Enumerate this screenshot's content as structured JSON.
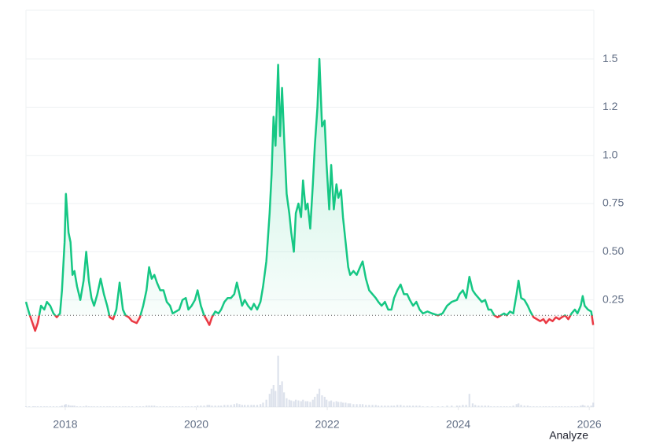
{
  "chart_data": {
    "type": "line",
    "x": [
      2017.4,
      2017.45,
      2017.51,
      2017.54,
      2017.58,
      2017.63,
      2017.68,
      2017.72,
      2017.77,
      2017.82,
      2017.87,
      2017.92,
      2017.95,
      2017.99,
      2018.01,
      2018.05,
      2018.08,
      2018.11,
      2018.14,
      2018.18,
      2018.23,
      2018.28,
      2018.32,
      2018.36,
      2018.4,
      2018.44,
      2018.49,
      2018.54,
      2018.59,
      2018.64,
      2018.68,
      2018.73,
      2018.78,
      2018.83,
      2018.88,
      2018.92,
      2018.97,
      2019.02,
      2019.09,
      2019.14,
      2019.19,
      2019.24,
      2019.28,
      2019.32,
      2019.36,
      2019.4,
      2019.45,
      2019.5,
      2019.55,
      2019.6,
      2019.64,
      2019.69,
      2019.74,
      2019.79,
      2019.84,
      2019.88,
      2019.93,
      2019.98,
      2020.02,
      2020.07,
      2020.12,
      2020.17,
      2020.2,
      2020.24,
      2020.29,
      2020.34,
      2020.38,
      2020.43,
      2020.48,
      2020.53,
      2020.58,
      2020.62,
      2020.66,
      2020.7,
      2020.74,
      2020.79,
      2020.84,
      2020.88,
      2020.93,
      2020.98,
      2021.02,
      2021.07,
      2021.12,
      2021.15,
      2021.18,
      2021.21,
      2021.25,
      2021.28,
      2021.31,
      2021.34,
      2021.38,
      2021.42,
      2021.45,
      2021.49,
      2021.52,
      2021.56,
      2021.6,
      2021.63,
      2021.67,
      2021.7,
      2021.74,
      2021.78,
      2021.81,
      2021.85,
      2021.88,
      2021.92,
      2021.96,
      2021.99,
      2022.03,
      2022.06,
      2022.1,
      2022.14,
      2022.17,
      2022.21,
      2022.24,
      2022.28,
      2022.32,
      2022.35,
      2022.4,
      2022.45,
      2022.5,
      2022.54,
      2022.59,
      2022.64,
      2022.69,
      2022.74,
      2022.78,
      2022.83,
      2022.88,
      2022.93,
      2022.98,
      2023.02,
      2023.07,
      2023.12,
      2023.17,
      2023.22,
      2023.26,
      2023.31,
      2023.36,
      2023.41,
      2023.46,
      2023.53,
      2023.6,
      2023.69,
      2023.76,
      2023.83,
      2023.9,
      2023.98,
      2024.02,
      2024.07,
      2024.12,
      2024.17,
      2024.22,
      2024.26,
      2024.31,
      2024.36,
      2024.41,
      2024.46,
      2024.5,
      2024.55,
      2024.6,
      2024.65,
      2024.7,
      2024.74,
      2024.79,
      2024.84,
      2024.89,
      2024.92,
      2024.96,
      2025.01,
      2025.06,
      2025.1,
      2025.15,
      2025.2,
      2025.25,
      2025.3,
      2025.34,
      2025.39,
      2025.44,
      2025.49,
      2025.54,
      2025.58,
      2025.63,
      2025.68,
      2025.73,
      2025.78,
      2025.82,
      2025.87,
      2025.9,
      2025.93,
      2025.98,
      2026.03,
      2026.06
    ],
    "values": [
      0.24,
      0.18,
      0.12,
      0.09,
      0.13,
      0.22,
      0.2,
      0.24,
      0.22,
      0.18,
      0.16,
      0.18,
      0.3,
      0.55,
      0.8,
      0.6,
      0.55,
      0.38,
      0.4,
      0.32,
      0.25,
      0.35,
      0.5,
      0.35,
      0.26,
      0.22,
      0.28,
      0.36,
      0.28,
      0.22,
      0.16,
      0.15,
      0.2,
      0.34,
      0.2,
      0.17,
      0.16,
      0.14,
      0.13,
      0.16,
      0.22,
      0.3,
      0.42,
      0.36,
      0.38,
      0.34,
      0.3,
      0.3,
      0.24,
      0.22,
      0.18,
      0.19,
      0.2,
      0.25,
      0.26,
      0.2,
      0.22,
      0.25,
      0.3,
      0.22,
      0.17,
      0.14,
      0.12,
      0.16,
      0.19,
      0.18,
      0.2,
      0.24,
      0.26,
      0.26,
      0.28,
      0.34,
      0.28,
      0.22,
      0.25,
      0.22,
      0.2,
      0.23,
      0.2,
      0.24,
      0.32,
      0.45,
      0.7,
      0.9,
      1.2,
      1.05,
      1.47,
      1.1,
      1.35,
      1.1,
      0.8,
      0.7,
      0.6,
      0.5,
      0.7,
      0.75,
      0.68,
      0.87,
      0.72,
      0.75,
      0.62,
      0.85,
      1.05,
      1.25,
      1.5,
      1.15,
      1.18,
      0.95,
      0.72,
      0.95,
      0.72,
      0.85,
      0.78,
      0.82,
      0.68,
      0.55,
      0.42,
      0.38,
      0.4,
      0.38,
      0.42,
      0.45,
      0.36,
      0.3,
      0.28,
      0.26,
      0.24,
      0.22,
      0.24,
      0.2,
      0.2,
      0.26,
      0.3,
      0.33,
      0.28,
      0.28,
      0.25,
      0.22,
      0.24,
      0.2,
      0.18,
      0.19,
      0.18,
      0.17,
      0.18,
      0.22,
      0.24,
      0.25,
      0.28,
      0.3,
      0.26,
      0.37,
      0.3,
      0.28,
      0.26,
      0.24,
      0.25,
      0.2,
      0.2,
      0.17,
      0.16,
      0.17,
      0.18,
      0.17,
      0.19,
      0.18,
      0.28,
      0.35,
      0.26,
      0.25,
      0.22,
      0.19,
      0.16,
      0.15,
      0.14,
      0.15,
      0.13,
      0.15,
      0.14,
      0.16,
      0.15,
      0.16,
      0.17,
      0.15,
      0.18,
      0.2,
      0.18,
      0.22,
      0.27,
      0.22,
      0.2,
      0.19,
      0.12
    ],
    "volume": [
      1,
      1,
      1,
      1,
      1,
      1,
      1,
      1,
      1,
      1,
      1,
      1,
      2,
      3,
      4,
      3,
      2,
      2,
      2,
      1,
      1,
      1,
      2,
      1,
      1,
      1,
      1,
      1,
      1,
      1,
      1,
      1,
      1,
      1,
      1,
      1,
      1,
      1,
      1,
      1,
      1,
      2,
      2,
      2,
      2,
      1,
      1,
      1,
      1,
      1,
      1,
      1,
      1,
      1,
      1,
      1,
      1,
      1,
      2,
      2,
      2,
      3,
      3,
      2,
      2,
      2,
      2,
      3,
      3,
      3,
      4,
      5,
      4,
      3,
      3,
      3,
      3,
      3,
      3,
      4,
      6,
      10,
      18,
      25,
      30,
      22,
      70,
      30,
      35,
      20,
      12,
      10,
      9,
      8,
      10,
      9,
      8,
      10,
      8,
      8,
      7,
      10,
      14,
      18,
      25,
      16,
      14,
      10,
      8,
      9,
      7,
      8,
      7,
      7,
      6,
      6,
      5,
      5,
      4,
      4,
      4,
      4,
      3,
      3,
      3,
      3,
      2,
      2,
      2,
      2,
      2,
      2,
      3,
      3,
      2,
      2,
      2,
      2,
      2,
      2,
      1,
      1,
      1,
      1,
      1,
      2,
      2,
      2,
      2,
      3,
      3,
      18,
      5,
      3,
      2,
      2,
      2,
      2,
      1,
      1,
      1,
      1,
      1,
      1,
      1,
      2,
      4,
      5,
      3,
      2,
      2,
      1,
      1,
      1,
      1,
      1,
      1,
      1,
      1,
      1,
      1,
      1,
      1,
      1,
      1,
      1,
      1,
      2,
      3,
      2,
      2,
      2,
      6
    ],
    "volume_lim": [
      0,
      75
    ],
    "baseline": 0.17,
    "up_color": "#16c784",
    "down_color": "#ea3943",
    "volume_color": "#cfd6e4",
    "xlim": [
      2017.4,
      2026.07
    ],
    "xticks": [
      2018,
      2020,
      2022,
      2024,
      2026
    ],
    "ylim": [
      0,
      1.753
    ],
    "yticks": [
      0.25,
      {
        "value": 0.5,
        "label": "0.50"
      },
      0.75,
      {
        "value": 1,
        "label": "1.0"
      },
      {
        "value": 1.25,
        "label": "1.2"
      },
      1.5
    ],
    "grid": true,
    "annotation": "Analyze"
  }
}
